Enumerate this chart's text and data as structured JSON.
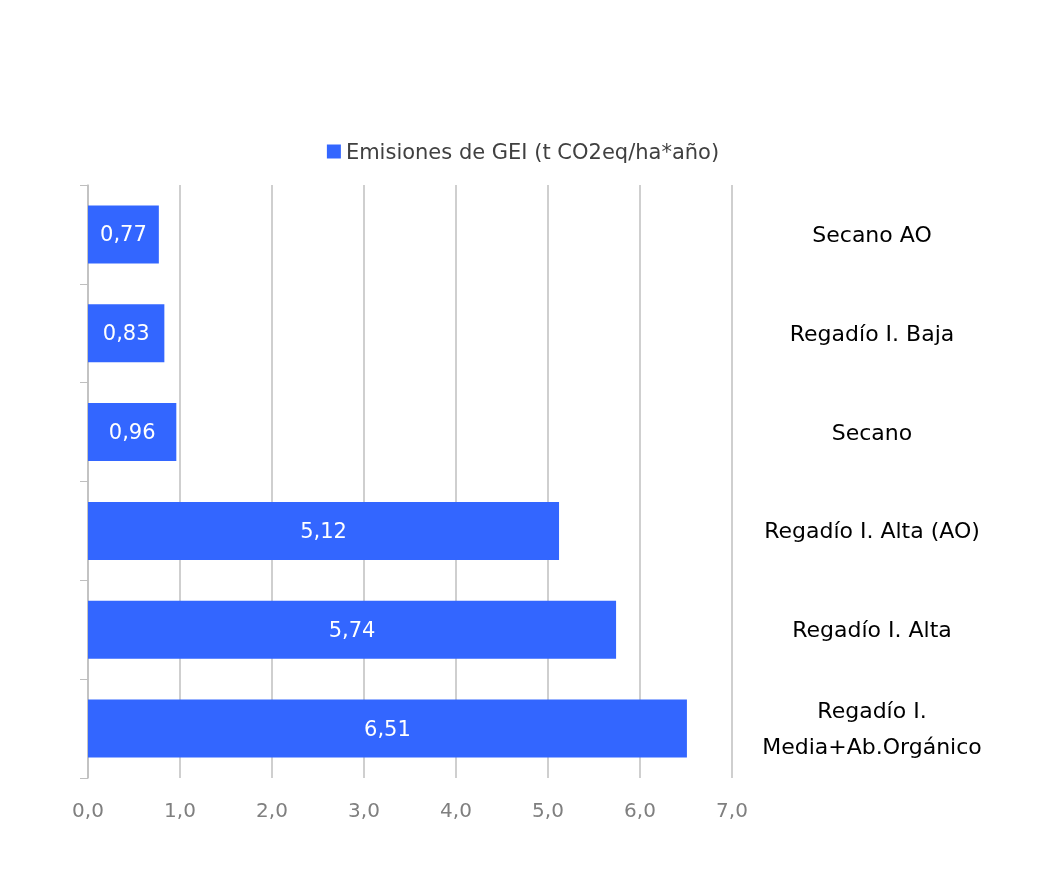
{
  "chart_data": {
    "type": "bar",
    "orientation": "horizontal",
    "categories": [
      "Secano AO",
      "Regadío I. Baja",
      "Secano",
      "Regadío I. Alta (AO)",
      "Regadío I. Alta",
      "Regadío I.\nMedia+Ab.Orgánico"
    ],
    "series": [
      {
        "name": "Emisiones de GEI (t CO2eq/ha*año)",
        "color": "#3366ff",
        "values": [
          0.77,
          0.83,
          0.96,
          5.12,
          5.74,
          6.51
        ],
        "value_labels": [
          "0,77",
          "0,83",
          "0,96",
          "5,12",
          "5,74",
          "6,51"
        ]
      }
    ],
    "xlim": [
      0,
      7
    ],
    "xticks": [
      {
        "value": 0,
        "label": "0,0"
      },
      {
        "value": 1,
        "label": "1,0"
      },
      {
        "value": 2,
        "label": "2,0"
      },
      {
        "value": 3,
        "label": "3,0"
      },
      {
        "value": 4,
        "label": "4,0"
      },
      {
        "value": 5,
        "label": "5,0"
      },
      {
        "value": 6,
        "label": "6,0"
      },
      {
        "value": 7,
        "label": "7,0"
      }
    ],
    "grid": "x",
    "legend": "top"
  }
}
